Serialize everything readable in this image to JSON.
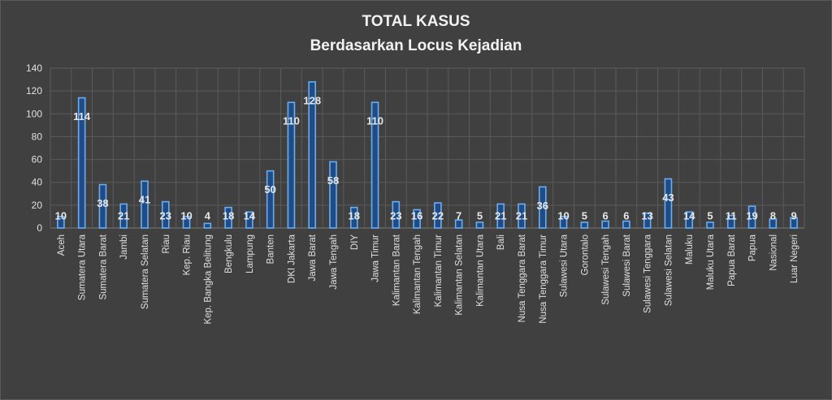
{
  "header": {
    "title": "TOTAL KASUS",
    "subtitle": "Berdasarkan Locus Kejadian"
  },
  "chart_data": {
    "type": "bar",
    "title": "TOTAL KASUS",
    "subtitle": "Berdasarkan Locus Kejadian",
    "xlabel": "",
    "ylabel": "",
    "ylim": [
      0,
      140
    ],
    "yticks": [
      0,
      20,
      40,
      60,
      80,
      100,
      120,
      140
    ],
    "grid": true,
    "legend": "none",
    "categories": [
      "Aceh",
      "Sumatera Utara",
      "Sumatera Barat",
      "Jambi",
      "Sumatera Selatan",
      "Riau",
      "Kep. Riau",
      "Kep. Bangka Belitung",
      "Bengkulu",
      "Lampung",
      "Banten",
      "DKI Jakarta",
      "Jawa Barat",
      "Jawa Tengah",
      "DIY",
      "Jawa Timur",
      "Kalimantan Barat",
      "Kalimantan Tengah",
      "Kalimantan Timur",
      "Kalimantan Selatan",
      "Kalimantan Utara",
      "Bali",
      "Nusa Tenggara Barat",
      "Nusa Tenggara Timur",
      "Sulawesi Utara",
      "Gorontalo",
      "Sulawesi Tengah",
      "Sulawesi Barat",
      "Sulawesi Tenggara",
      "Sulawesi Selatan",
      "Maluku",
      "Maluku Utara",
      "Papua Barat",
      "Papua",
      "Nasional",
      "Luar Negeri"
    ],
    "values": [
      10,
      114,
      38,
      21,
      41,
      23,
      10,
      4,
      18,
      14,
      50,
      110,
      128,
      58,
      18,
      110,
      23,
      16,
      22,
      7,
      5,
      21,
      21,
      36,
      10,
      5,
      6,
      6,
      13,
      43,
      14,
      5,
      11,
      19,
      8,
      9
    ],
    "colors": {
      "bar_fill": "#1f4b86",
      "bar_outline": "#6aaef0",
      "background": "#404040",
      "text": "#f2f2f2"
    }
  }
}
